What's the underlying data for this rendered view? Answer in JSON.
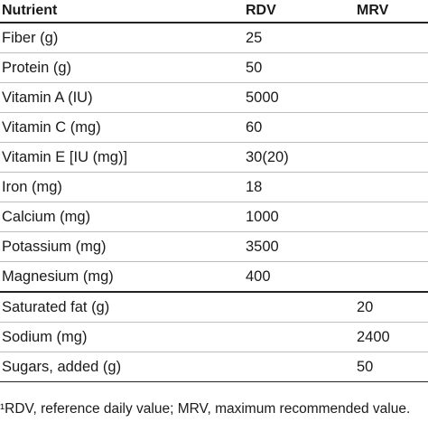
{
  "table": {
    "headers": {
      "nutrient": "Nutrient",
      "rdv": "RDV",
      "mrv": "MRV"
    },
    "rows": [
      {
        "nutrient": "Fiber (g)",
        "rdv": "25",
        "mrv": ""
      },
      {
        "nutrient": "Protein (g)",
        "rdv": "50",
        "mrv": ""
      },
      {
        "nutrient": "Vitamin A (IU)",
        "rdv": "5000",
        "mrv": ""
      },
      {
        "nutrient": "Vitamin C (mg)",
        "rdv": "60",
        "mrv": ""
      },
      {
        "nutrient": "Vitamin E [IU (mg)]",
        "rdv": "30(20)",
        "mrv": ""
      },
      {
        "nutrient": "Iron (mg)",
        "rdv": "18",
        "mrv": ""
      },
      {
        "nutrient": "Calcium (mg)",
        "rdv": "1000",
        "mrv": ""
      },
      {
        "nutrient": "Potassium (mg)",
        "rdv": "3500",
        "mrv": ""
      },
      {
        "nutrient": "Magnesium (mg)",
        "rdv": "400",
        "mrv": ""
      },
      {
        "nutrient": "Saturated fat (g)",
        "rdv": "",
        "mrv": "20"
      },
      {
        "nutrient": "Sodium (mg)",
        "rdv": "",
        "mrv": "2400"
      },
      {
        "nutrient": "Sugars, added (g)",
        "rdv": "",
        "mrv": "50"
      }
    ]
  },
  "footnote": "¹RDV, reference daily value; MRV, maximum recommended value."
}
